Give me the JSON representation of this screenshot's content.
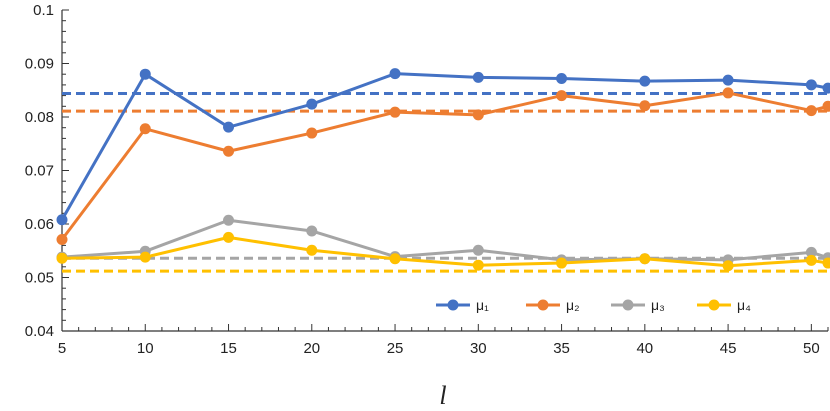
{
  "chart_data": {
    "type": "line",
    "title": "",
    "xlabel": "l",
    "ylabel": "",
    "x": [
      5,
      10,
      15,
      20,
      25,
      30,
      35,
      40,
      45,
      50,
      51
    ],
    "xticks": [
      5,
      10,
      15,
      20,
      25,
      30,
      35,
      40,
      45,
      50
    ],
    "xlim": [
      5,
      51
    ],
    "ylim": [
      0.04,
      0.1
    ],
    "yticks": [
      "0.04",
      "0.05",
      "0.06",
      "0.07",
      "0.08",
      "0.09",
      "0.1"
    ],
    "legend_position": "bottom-right",
    "series": [
      {
        "name": "μ₁",
        "color": "#4472C4",
        "values": [
          0.0608,
          0.088,
          0.0781,
          0.0824,
          0.0881,
          0.0874,
          0.0872,
          0.0867,
          0.0869,
          0.086,
          0.0854
        ],
        "reference": 0.0844
      },
      {
        "name": "μ₂",
        "color": "#ED7D31",
        "values": [
          0.0571,
          0.0778,
          0.0736,
          0.077,
          0.0809,
          0.0804,
          0.084,
          0.0821,
          0.0845,
          0.0812,
          0.082
        ],
        "reference": 0.0811
      },
      {
        "name": "μ₃",
        "color": "#A5A5A5",
        "values": [
          0.0538,
          0.0549,
          0.0607,
          0.0587,
          0.0539,
          0.0551,
          0.0533,
          0.0535,
          0.0533,
          0.0547,
          0.0537
        ],
        "reference": 0.0536
      },
      {
        "name": "μ₄",
        "color": "#FFC000",
        "values": [
          0.0536,
          0.0538,
          0.0575,
          0.0551,
          0.0535,
          0.0523,
          0.0527,
          0.0535,
          0.0522,
          0.0532,
          0.0527
        ],
        "reference": 0.0512
      }
    ]
  }
}
